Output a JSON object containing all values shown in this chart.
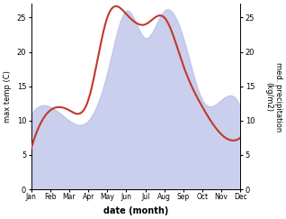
{
  "months": [
    "Jan",
    "Feb",
    "Mar",
    "Apr",
    "May",
    "Jun",
    "Jul",
    "Aug",
    "Sep",
    "Oct",
    "Nov",
    "Dec"
  ],
  "month_indices": [
    1,
    2,
    3,
    4,
    5,
    6,
    7,
    8,
    9,
    10,
    11,
    12
  ],
  "temp": [
    6.0,
    11.5,
    11.5,
    13.0,
    25.0,
    25.5,
    24.0,
    25.0,
    18.0,
    12.0,
    8.0,
    7.5
  ],
  "precip": [
    11,
    12,
    10,
    10,
    17,
    26,
    22,
    26,
    22,
    13,
    13,
    12
  ],
  "temp_ylim": [
    0,
    27
  ],
  "precip_ylim": [
    0,
    27
  ],
  "temp_color": "#c0392b",
  "precip_fill_color": "#b8bfe8",
  "xlabel": "date (month)",
  "ylabel_left": "max temp (C)",
  "ylabel_right": "med. precipitation\n(kg/m2)",
  "bg_color": "#ffffff",
  "yticks_left": [
    0,
    5,
    10,
    15,
    20,
    25
  ],
  "yticks_right": [
    0,
    5,
    10,
    15,
    20,
    25
  ],
  "figsize": [
    3.18,
    2.43
  ],
  "dpi": 100
}
